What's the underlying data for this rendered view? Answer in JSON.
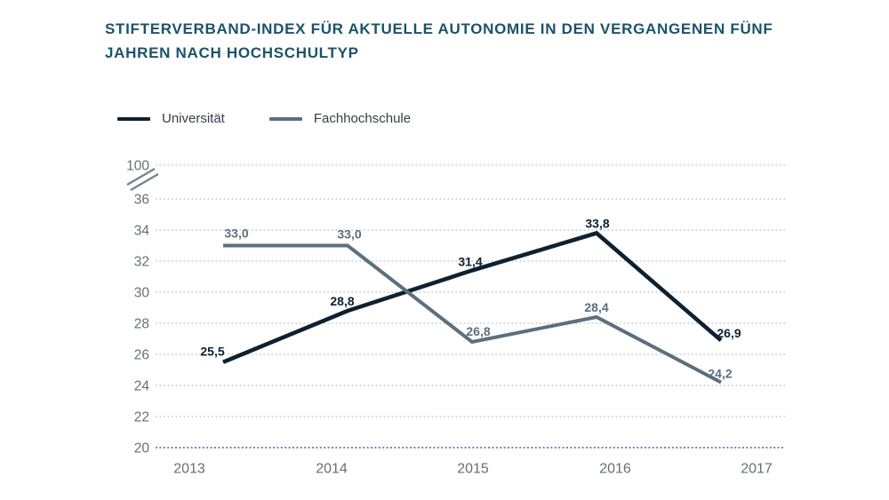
{
  "header": {
    "title_lines": [
      "STIFTERVERBAND-INDEX FÜR AKTUELLE AUTONOMIE IN DEN VERGANGENEN FÜNF",
      "JAHREN NACH HOCHSCHULTYP"
    ]
  },
  "legend": {
    "items": [
      {
        "label": "Universität",
        "color": "#0e2130"
      },
      {
        "label": "Fachhochschule",
        "color": "#5c6f7d"
      }
    ]
  },
  "chart_data": {
    "type": "line",
    "title": "STIFTERVERBAND-INDEX FÜR AKTUELLE AUTONOMIE IN DEN VERGANGENEN FÜNF JAHREN NACH HOCHSCHULTYP",
    "categories": [
      "2013",
      "2014",
      "2015",
      "2016",
      "2017"
    ],
    "series": [
      {
        "name": "Universität",
        "color": "#0e2130",
        "values": [
          25.5,
          28.8,
          31.4,
          33.8,
          26.9
        ],
        "point_labels": [
          "25,5",
          "28,8",
          "31,4",
          "33,8",
          "26,9"
        ]
      },
      {
        "name": "Fachhochschule",
        "color": "#5c6f7d",
        "values": [
          33.0,
          33.0,
          26.8,
          28.4,
          24.2
        ],
        "point_labels": [
          "33,0",
          "33,0",
          "26,8",
          "28,4",
          "24,2"
        ]
      }
    ],
    "y_axis": {
      "tick_values": [
        100,
        36,
        34,
        32,
        30,
        28,
        26,
        24,
        22,
        20
      ],
      "tick_labels": [
        "100",
        "36",
        "34",
        "32",
        "30",
        "28",
        "26",
        "24",
        "22",
        "20"
      ],
      "axis_break_between": [
        100,
        36
      ],
      "visible_range": [
        20,
        36
      ]
    },
    "x_axis": {
      "tick_labels": [
        "2013",
        "2014",
        "2015",
        "2016",
        "2017"
      ]
    },
    "grid": {
      "style": "dotted-horizontal",
      "color": "#a6acb0",
      "baseline_color": "#3f6c8c"
    },
    "legend_position": "top-left",
    "title_color": "#1b536b",
    "axis_text_color": "#666f76"
  }
}
